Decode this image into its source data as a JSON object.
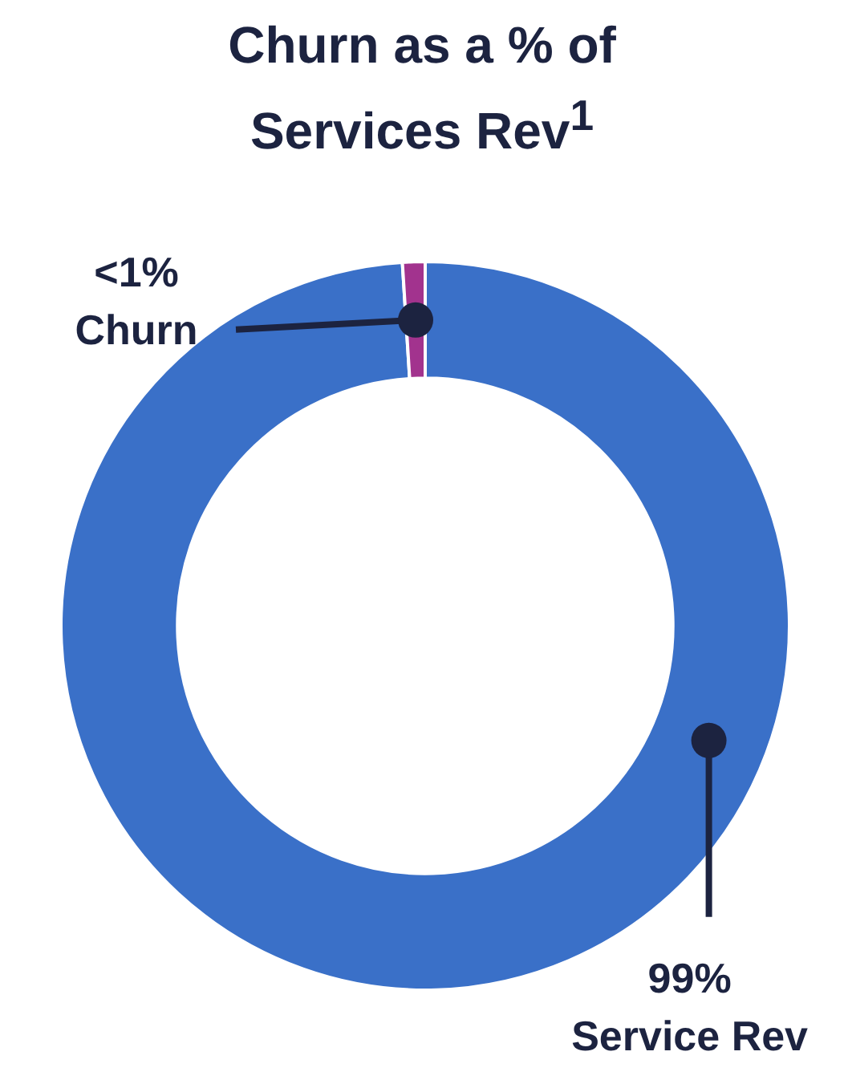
{
  "chart_data": {
    "type": "donut",
    "title": "Churn as a % of Services Rev$^{1}$",
    "categories": [
      "Service Rev",
      "Churn"
    ],
    "values": [
      99,
      1
    ],
    "value_labels": [
      "99%",
      "<1%"
    ],
    "colors": [
      "#3a70c8",
      "#a2338e"
    ],
    "legend": false
  }
}
